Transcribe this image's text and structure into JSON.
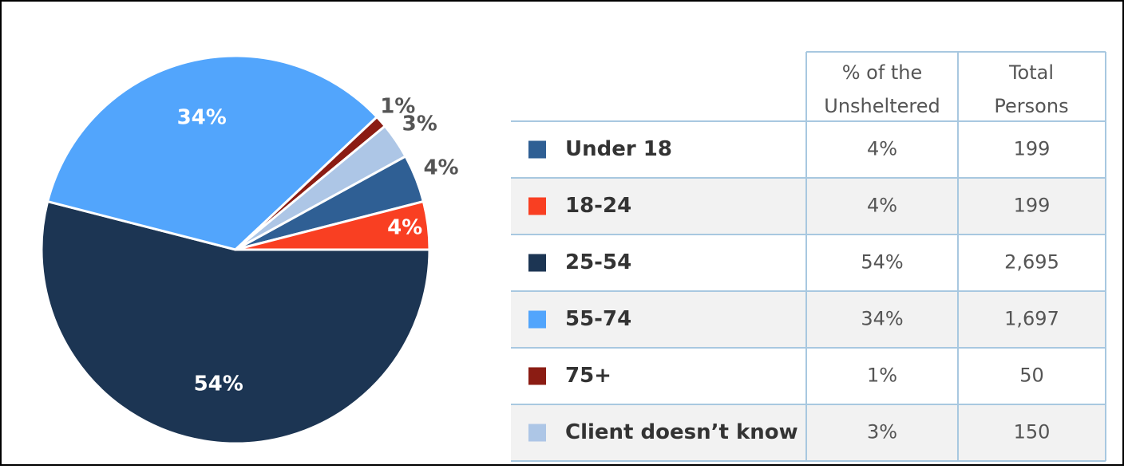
{
  "chart_data": {
    "type": "pie",
    "categories": [
      "Under 18",
      "18-24",
      "25-54",
      "55-74",
      "75+",
      "Client doesn’t know"
    ],
    "values": [
      4,
      4,
      54,
      34,
      1,
      3
    ],
    "value_labels": [
      "4%",
      "4%",
      "54%",
      "34%",
      "1%",
      "3%"
    ],
    "colors": [
      "#2f5f94",
      "#f93f22",
      "#1c3553",
      "#52a5fc",
      "#8b1c13",
      "#adc6e6"
    ]
  },
  "table": {
    "headers": [
      [
        "% of the",
        "Unsheltered"
      ],
      [
        "Total",
        "Persons"
      ]
    ],
    "totals": [
      "199",
      "199",
      "2,695",
      "1,697",
      "50",
      "150"
    ]
  }
}
